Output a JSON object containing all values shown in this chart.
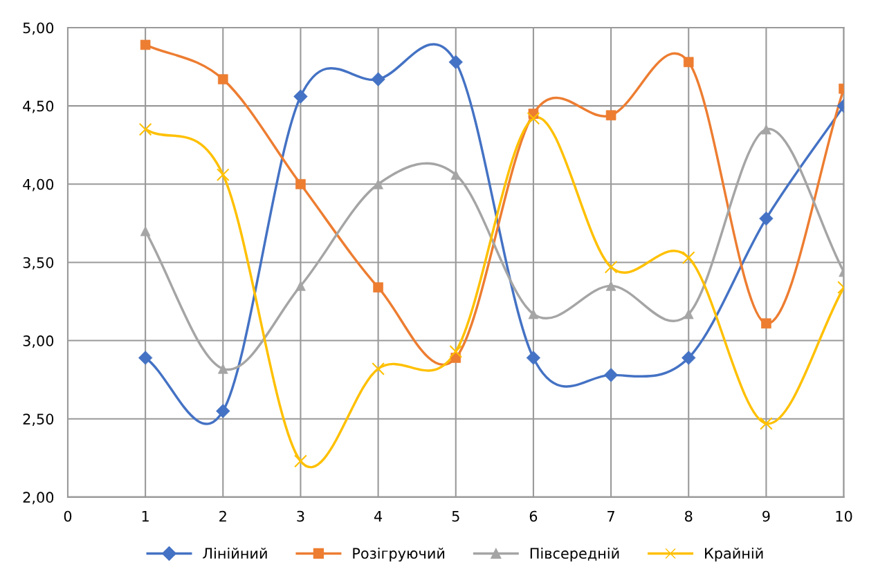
{
  "chart_data": {
    "type": "line",
    "x": [
      1,
      2,
      3,
      4,
      5,
      6,
      7,
      8,
      9,
      10
    ],
    "xlim": [
      0,
      10
    ],
    "xticks": [
      0,
      1,
      2,
      3,
      4,
      5,
      6,
      7,
      8,
      9,
      10
    ],
    "ylim": [
      2,
      5
    ],
    "yticks": [
      {
        "value": 2,
        "label": "2,00"
      },
      {
        "value": 2.5,
        "label": "2,50"
      },
      {
        "value": 3,
        "label": "3,00"
      },
      {
        "value": 3.5,
        "label": "3,50"
      },
      {
        "value": 4,
        "label": "4,00"
      },
      {
        "value": 4.5,
        "label": "4,50"
      },
      {
        "value": 5,
        "label": "5,00"
      }
    ],
    "grid": true,
    "legend": "bottom",
    "line_style": "solid",
    "series": [
      {
        "name": "Лінійний",
        "color": "#4472c4",
        "marker": "diamond",
        "values": [
          2.89,
          2.55,
          4.56,
          4.67,
          4.78,
          2.89,
          2.78,
          2.89,
          3.78,
          4.5
        ]
      },
      {
        "name": "Розігруючий",
        "color": "#ed7d31",
        "marker": "square",
        "values": [
          4.89,
          4.67,
          4.0,
          3.34,
          2.89,
          4.45,
          4.44,
          4.78,
          3.11,
          4.61
        ]
      },
      {
        "name": "Півсередній",
        "color": "#a5a5a5",
        "marker": "triangle",
        "values": [
          3.7,
          2.82,
          3.35,
          4.0,
          4.06,
          3.17,
          3.35,
          3.17,
          4.35,
          3.44
        ]
      },
      {
        "name": "Крайній",
        "color": "#ffc000",
        "marker": "cross",
        "values": [
          4.35,
          4.06,
          2.23,
          2.82,
          2.93,
          4.42,
          3.47,
          3.53,
          2.47,
          3.34
        ]
      }
    ]
  }
}
